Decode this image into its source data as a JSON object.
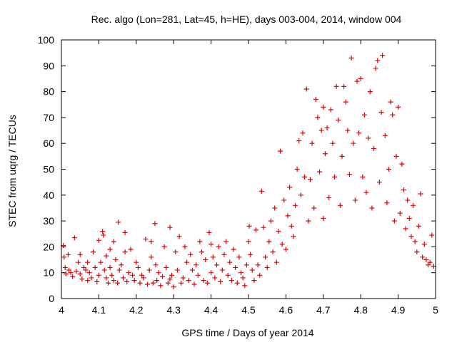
{
  "chart_data": {
    "type": "scatter",
    "title": "Rec. algo (Lon=281, Lat=45, h=HE), days 003-004, 2014, window 004",
    "xlabel": "GPS time / Days of year 2014",
    "ylabel": "STEC from uqrg / TECUs",
    "xlim": [
      4,
      5
    ],
    "ylim": [
      0,
      100
    ],
    "xticks": [
      "4",
      "4.1",
      "4.2",
      "4.3",
      "4.4",
      "4.5",
      "4.6",
      "4.7",
      "4.8",
      "4.9",
      "5"
    ],
    "yticks": [
      "0",
      "10",
      "20",
      "30",
      "40",
      "50",
      "60",
      "70",
      "80",
      "90",
      "100"
    ],
    "grid": false,
    "marker": "plus",
    "series": [
      {
        "name": "STEC",
        "color": "#e00000",
        "points": [
          [
            4.005,
            20.5
          ],
          [
            4.007,
            16
          ],
          [
            4.01,
            12
          ],
          [
            4.012,
            9.5
          ],
          [
            4.018,
            17
          ],
          [
            4.02,
            11
          ],
          [
            4.025,
            10
          ],
          [
            4.03,
            8.5
          ],
          [
            4.035,
            23.5
          ],
          [
            4.04,
            10.5
          ],
          [
            4.045,
            14
          ],
          [
            4.05,
            17
          ],
          [
            4.05,
            9.5
          ],
          [
            4.055,
            7.5
          ],
          [
            4.06,
            12
          ],
          [
            4.065,
            11
          ],
          [
            4.07,
            14
          ],
          [
            4.07,
            7
          ],
          [
            4.075,
            10
          ],
          [
            4.08,
            8
          ],
          [
            4.085,
            18
          ],
          [
            4.09,
            12
          ],
          [
            4.095,
            6.5
          ],
          [
            4.1,
            22.5
          ],
          [
            4.1,
            9
          ],
          [
            4.105,
            14
          ],
          [
            4.11,
            26
          ],
          [
            4.112,
            24.5
          ],
          [
            4.115,
            11
          ],
          [
            4.12,
            8
          ],
          [
            4.12,
            16.5
          ],
          [
            4.125,
            6
          ],
          [
            4.13,
            19
          ],
          [
            4.13,
            12
          ],
          [
            4.135,
            9
          ],
          [
            4.14,
            22
          ],
          [
            4.14,
            7
          ],
          [
            4.145,
            15
          ],
          [
            4.15,
            6
          ],
          [
            4.152,
            29.5
          ],
          [
            4.155,
            11
          ],
          [
            4.16,
            13
          ],
          [
            4.165,
            8
          ],
          [
            4.17,
            25.5
          ],
          [
            4.17,
            18
          ],
          [
            4.175,
            6.5
          ],
          [
            4.18,
            10
          ],
          [
            4.185,
            19
          ],
          [
            4.19,
            9
          ],
          [
            4.195,
            7
          ],
          [
            4.2,
            14
          ],
          [
            4.205,
            12
          ],
          [
            4.21,
            6
          ],
          [
            4.215,
            9
          ],
          [
            4.22,
            8
          ],
          [
            4.225,
            23
          ],
          [
            4.23,
            5.5
          ],
          [
            4.235,
            11
          ],
          [
            4.24,
            22
          ],
          [
            4.24,
            16
          ],
          [
            4.245,
            6
          ],
          [
            4.25,
            29
          ],
          [
            4.252,
            13
          ],
          [
            4.255,
            7
          ],
          [
            4.26,
            10
          ],
          [
            4.265,
            5
          ],
          [
            4.27,
            8.5
          ],
          [
            4.275,
            20
          ],
          [
            4.28,
            12
          ],
          [
            4.285,
            6
          ],
          [
            4.29,
            27.5
          ],
          [
            4.29,
            7.5
          ],
          [
            4.295,
            9
          ],
          [
            4.3,
            4.5
          ],
          [
            4.305,
            18
          ],
          [
            4.31,
            11
          ],
          [
            4.315,
            24
          ],
          [
            4.32,
            6
          ],
          [
            4.325,
            8
          ],
          [
            4.33,
            20
          ],
          [
            4.335,
            14
          ],
          [
            4.34,
            7
          ],
          [
            4.345,
            17
          ],
          [
            4.35,
            11
          ],
          [
            4.355,
            5.5
          ],
          [
            4.36,
            13
          ],
          [
            4.365,
            9
          ],
          [
            4.37,
            22
          ],
          [
            4.375,
            18
          ],
          [
            4.38,
            7
          ],
          [
            4.385,
            15
          ],
          [
            4.39,
            6
          ],
          [
            4.395,
            25.5
          ],
          [
            4.4,
            10
          ],
          [
            4.4,
            21
          ],
          [
            4.405,
            16
          ],
          [
            4.41,
            8
          ],
          [
            4.415,
            13
          ],
          [
            4.42,
            20
          ],
          [
            4.425,
            6.5
          ],
          [
            4.43,
            11
          ],
          [
            4.435,
            17
          ],
          [
            4.44,
            22
          ],
          [
            4.445,
            9
          ],
          [
            4.45,
            14
          ],
          [
            4.455,
            7
          ],
          [
            4.46,
            19
          ],
          [
            4.465,
            12
          ],
          [
            4.47,
            6
          ],
          [
            4.475,
            16
          ],
          [
            4.48,
            10
          ],
          [
            4.485,
            8
          ],
          [
            4.49,
            5
          ],
          [
            4.495,
            13
          ],
          [
            4.5,
            22
          ],
          [
            4.502,
            28
          ],
          [
            4.505,
            17
          ],
          [
            4.51,
            11
          ],
          [
            4.515,
            7
          ],
          [
            4.52,
            26.5
          ],
          [
            4.525,
            13
          ],
          [
            4.53,
            9
          ],
          [
            4.535,
            41.5
          ],
          [
            4.54,
            27.5
          ],
          [
            4.545,
            16
          ],
          [
            4.55,
            12
          ],
          [
            4.555,
            22
          ],
          [
            4.56,
            30
          ],
          [
            4.565,
            18
          ],
          [
            4.57,
            35
          ],
          [
            4.575,
            14
          ],
          [
            4.58,
            26
          ],
          [
            4.585,
            57
          ],
          [
            4.59,
            21
          ],
          [
            4.595,
            38
          ],
          [
            4.6,
            19
          ],
          [
            4.605,
            32
          ],
          [
            4.61,
            43
          ],
          [
            4.615,
            28
          ],
          [
            4.62,
            24
          ],
          [
            4.625,
            36
          ],
          [
            4.63,
            50
          ],
          [
            4.635,
            61
          ],
          [
            4.64,
            40
          ],
          [
            4.645,
            64
          ],
          [
            4.65,
            47
          ],
          [
            4.655,
            81
          ],
          [
            4.66,
            30
          ],
          [
            4.665,
            46
          ],
          [
            4.67,
            60
          ],
          [
            4.675,
            35
          ],
          [
            4.68,
            77
          ],
          [
            4.685,
            70
          ],
          [
            4.69,
            49
          ],
          [
            4.695,
            65
          ],
          [
            4.7,
            74
          ],
          [
            4.7,
            31
          ],
          [
            4.705,
            56
          ],
          [
            4.71,
            66
          ],
          [
            4.715,
            39
          ],
          [
            4.72,
            73
          ],
          [
            4.725,
            60
          ],
          [
            4.73,
            47
          ],
          [
            4.735,
            82
          ],
          [
            4.74,
            69
          ],
          [
            4.745,
            36
          ],
          [
            4.75,
            55
          ],
          [
            4.755,
            82
          ],
          [
            4.76,
            76
          ],
          [
            4.765,
            65
          ],
          [
            4.77,
            48
          ],
          [
            4.775,
            93
          ],
          [
            4.78,
            60
          ],
          [
            4.785,
            38
          ],
          [
            4.79,
            84
          ],
          [
            4.795,
            64
          ],
          [
            4.8,
            85
          ],
          [
            4.805,
            47
          ],
          [
            4.81,
            71
          ],
          [
            4.815,
            41
          ],
          [
            4.82,
            62
          ],
          [
            4.825,
            80
          ],
          [
            4.83,
            35
          ],
          [
            4.835,
            58
          ],
          [
            4.84,
            89
          ],
          [
            4.845,
            92
          ],
          [
            4.85,
            45
          ],
          [
            4.855,
            72
          ],
          [
            4.858,
            94
          ],
          [
            4.865,
            63
          ],
          [
            4.87,
            37
          ],
          [
            4.875,
            50
          ],
          [
            4.88,
            76
          ],
          [
            4.885,
            71
          ],
          [
            4.89,
            30
          ],
          [
            4.895,
            55
          ],
          [
            4.9,
            74
          ],
          [
            4.905,
            33
          ],
          [
            4.91,
            52
          ],
          [
            4.915,
            42
          ],
          [
            4.92,
            27
          ],
          [
            4.925,
            38
          ],
          [
            4.93,
            31
          ],
          [
            4.935,
            24
          ],
          [
            4.94,
            36
          ],
          [
            4.945,
            22
          ],
          [
            4.95,
            18
          ],
          [
            4.955,
            28
          ],
          [
            4.96,
            40.5
          ],
          [
            4.965,
            16
          ],
          [
            4.97,
            21
          ],
          [
            4.975,
            15
          ],
          [
            4.98,
            13
          ],
          [
            4.985,
            14
          ],
          [
            4.99,
            24.5
          ],
          [
            4.995,
            12.5
          ]
        ]
      }
    ]
  }
}
